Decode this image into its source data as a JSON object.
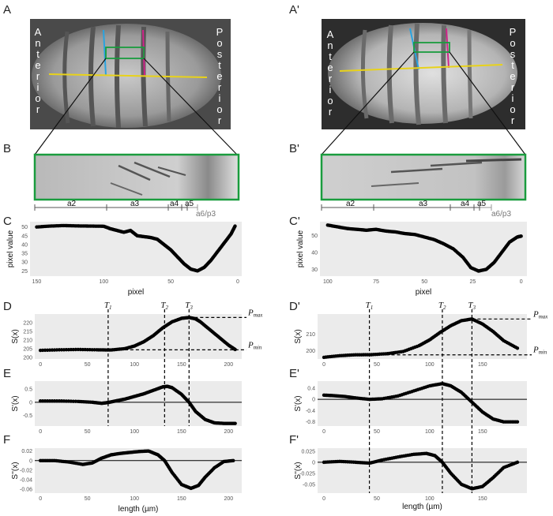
{
  "figure": {
    "left": {
      "panel_photo": "A",
      "panel_zoom": "B",
      "panel_c": "C",
      "panel_d": "D",
      "panel_e": "E",
      "panel_f": "F",
      "anterior": "Anterior",
      "posterior": "Posterior",
      "segments": [
        "a2",
        "a3",
        "a4",
        "a5",
        "a6/p3"
      ]
    },
    "right": {
      "panel_photo": "A'",
      "panel_zoom": "B'",
      "panel_c": "C'",
      "panel_d": "D'",
      "panel_e": "E'",
      "panel_f": "F'",
      "anterior": "Anterior",
      "posterior": "Posterior",
      "segments": [
        "a2",
        "a3",
        "a4",
        "a5",
        "a6/p3"
      ]
    },
    "annotations": {
      "t1": "1",
      "t2": "2",
      "t3": "3",
      "t": "T",
      "pmax": "max",
      "pmin": "min",
      "p": "P"
    }
  },
  "chart_data": [
    {
      "id": "C",
      "type": "scatter",
      "ylabel": "pixel value",
      "xlabel": "pixel",
      "x_reversed": true,
      "xlim": [
        155,
        -3
      ],
      "ylim": [
        22,
        53
      ],
      "xticks": [
        150,
        100,
        50,
        0
      ],
      "yticks": [
        25,
        30,
        35,
        40,
        45,
        50
      ],
      "x": [
        150,
        140,
        130,
        120,
        110,
        100,
        95,
        90,
        85,
        80,
        75,
        70,
        65,
        60,
        55,
        50,
        45,
        40,
        35,
        30,
        25,
        20,
        15,
        10,
        5,
        2
      ],
      "y": [
        50,
        50.5,
        50.8,
        50.6,
        50.5,
        50.4,
        49,
        48,
        47,
        48,
        45,
        44.5,
        44,
        43,
        40,
        37,
        33,
        29,
        26,
        25,
        27,
        31,
        36,
        41,
        46,
        50.5
      ]
    },
    {
      "id": "Cp",
      "type": "scatter",
      "ylabel": "pixel value",
      "xlabel": "pixel",
      "x_reversed": true,
      "xlim": [
        104,
        -3
      ],
      "ylim": [
        26,
        58
      ],
      "xticks": [
        100,
        75,
        50,
        25,
        0
      ],
      "yticks": [
        30,
        40,
        50
      ],
      "x": [
        100,
        95,
        90,
        85,
        80,
        75,
        70,
        65,
        60,
        55,
        50,
        45,
        40,
        35,
        30,
        26,
        22,
        18,
        14,
        10,
        6,
        2,
        0
      ],
      "y": [
        56,
        55,
        54,
        53.5,
        53,
        53.5,
        52.5,
        52,
        51,
        50.5,
        49,
        47.5,
        45,
        42,
        37,
        31,
        29,
        30,
        34,
        40,
        46,
        49,
        49.5
      ]
    },
    {
      "id": "D",
      "type": "scatter",
      "ylabel": "S(x)",
      "xlim": [
        -6,
        214
      ],
      "ylim": [
        199,
        225
      ],
      "xticks": [
        0,
        50,
        100,
        150,
        200
      ],
      "yticks": [
        200,
        205,
        210,
        215,
        220
      ],
      "x": [
        0,
        20,
        40,
        60,
        75,
        90,
        100,
        110,
        120,
        130,
        140,
        150,
        158,
        165,
        170,
        180,
        190,
        200,
        207
      ],
      "y": [
        204,
        204.3,
        204.5,
        204.3,
        204.2,
        205,
        206.5,
        209,
        212.5,
        217,
        220.5,
        222.5,
        223,
        222.2,
        220.5,
        216,
        211.5,
        207,
        204.5
      ],
      "T": [
        72,
        132,
        158
      ],
      "Pmax": 223,
      "Pmin": 204.3
    },
    {
      "id": "Dp",
      "type": "scatter",
      "ylabel": "S(x)",
      "xlim": [
        -6,
        192
      ],
      "ylim": [
        195,
        222
      ],
      "xticks": [
        0,
        50,
        100,
        150
      ],
      "yticks": [
        200,
        210
      ],
      "x": [
        0,
        15,
        30,
        45,
        60,
        75,
        90,
        100,
        110,
        120,
        130,
        140,
        150,
        160,
        170,
        183
      ],
      "y": [
        196,
        197,
        197.5,
        197.6,
        198.2,
        199.5,
        203,
        206.5,
        211,
        215,
        218,
        219,
        216,
        211.5,
        206,
        201.5
      ],
      "T": [
        43,
        112,
        140
      ],
      "Pmax": 219,
      "Pmin": 197.5
    },
    {
      "id": "E",
      "type": "scatter",
      "ylabel": "S'(x)",
      "xlim": [
        -6,
        214
      ],
      "ylim": [
        -0.9,
        0.8
      ],
      "xticks": [
        0,
        50,
        100,
        150,
        200
      ],
      "yticks": [
        -0.5,
        0.0,
        0.5
      ],
      "x": [
        0,
        20,
        40,
        55,
        65,
        72,
        80,
        90,
        100,
        110,
        120,
        130,
        135,
        140,
        150,
        158,
        165,
        175,
        185,
        195,
        207
      ],
      "y": [
        0.05,
        0.05,
        0.03,
        0.0,
        -0.04,
        -0.01,
        0.05,
        0.12,
        0.22,
        0.32,
        0.45,
        0.58,
        0.6,
        0.55,
        0.3,
        0.0,
        -0.35,
        -0.65,
        -0.78,
        -0.8,
        -0.8
      ],
      "T": [
        72,
        132,
        158
      ]
    },
    {
      "id": "Ep",
      "type": "scatter",
      "ylabel": "S'(x)",
      "xlim": [
        -6,
        192
      ],
      "ylim": [
        -0.95,
        0.65
      ],
      "xticks": [
        0,
        50,
        100,
        150
      ],
      "yticks": [
        -0.8,
        -0.4,
        0.0,
        0.4
      ],
      "x": [
        0,
        10,
        20,
        30,
        43,
        55,
        70,
        85,
        100,
        112,
        120,
        130,
        140,
        150,
        160,
        170,
        183
      ],
      "y": [
        0.15,
        0.13,
        0.1,
        0.05,
        0.0,
        0.02,
        0.12,
        0.3,
        0.48,
        0.56,
        0.48,
        0.25,
        -0.1,
        -0.45,
        -0.7,
        -0.8,
        -0.8
      ],
      "T": [
        43,
        112,
        140
      ]
    },
    {
      "id": "F",
      "type": "scatter",
      "ylabel": "S''(x)",
      "xlabel": "length (µm)",
      "xlim": [
        -6,
        214
      ],
      "ylim": [
        -0.068,
        0.026
      ],
      "xticks": [
        0,
        50,
        100,
        150,
        200
      ],
      "yticks": [
        -0.06,
        -0.04,
        -0.02,
        0.0,
        0.02
      ],
      "x": [
        0,
        15,
        30,
        45,
        55,
        65,
        75,
        85,
        95,
        105,
        115,
        125,
        132,
        140,
        150,
        160,
        168,
        175,
        185,
        195,
        205
      ],
      "y": [
        0.0,
        0.0,
        -0.003,
        -0.008,
        -0.005,
        0.005,
        0.012,
        0.015,
        0.017,
        0.019,
        0.02,
        0.012,
        0.0,
        -0.025,
        -0.05,
        -0.058,
        -0.052,
        -0.035,
        -0.015,
        -0.002,
        0.0
      ]
    },
    {
      "id": "Fp",
      "type": "scatter",
      "ylabel": "S''(x)",
      "xlabel": "length (µm)",
      "xlim": [
        -6,
        192
      ],
      "ylim": [
        -0.07,
        0.032
      ],
      "xticks": [
        0,
        50,
        100,
        150
      ],
      "yticks": [
        0.025,
        0.0,
        -0.025,
        -0.05
      ],
      "x": [
        0,
        15,
        30,
        43,
        55,
        70,
        85,
        97,
        105,
        112,
        120,
        130,
        140,
        150,
        160,
        170,
        183
      ],
      "y": [
        0.0,
        0.002,
        0.0,
        -0.002,
        0.005,
        0.012,
        0.018,
        0.02,
        0.015,
        0.0,
        -0.025,
        -0.05,
        -0.06,
        -0.055,
        -0.035,
        -0.012,
        0.0
      ]
    }
  ]
}
